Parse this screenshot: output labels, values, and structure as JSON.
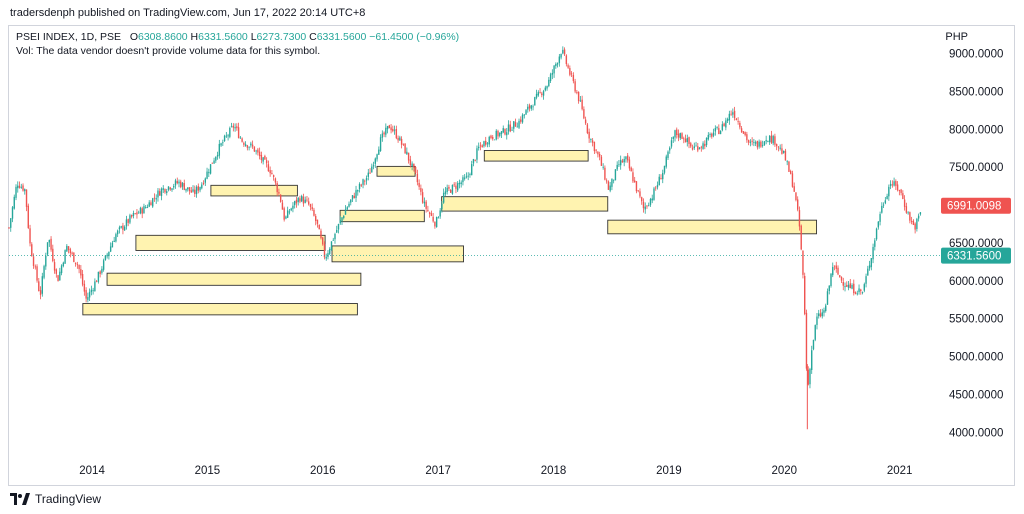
{
  "header": {
    "published": "tradersdenph published on TradingView.com, Jun 17, 2022 20:14 UTC+8"
  },
  "legend": {
    "symbol": "PSEI INDEX, 1D, PSE",
    "open_label": "O",
    "open": "6308.8600",
    "high_label": "H",
    "high": "6331.5600",
    "low_label": "L",
    "low": "6273.7300",
    "close_label": "C",
    "close": "6331.5600",
    "change": "−61.4500 (−0.96%)",
    "vol_note": "Vol: The data vendor doesn't provide volume data for this symbol."
  },
  "currency": "PHP",
  "footer": {
    "brand": "TradingView"
  },
  "colors": {
    "up": "#26a69a",
    "down": "#ef5350",
    "box_fill": "#fff3b0",
    "box_stroke": "#333333",
    "badge_red": "#ef5350",
    "badge_teal": "#26a69a"
  },
  "chart_data": {
    "type": "candlestick",
    "ylim": [
      3700,
      9350
    ],
    "y_ticks": [
      {
        "value": 9000,
        "label": "9000.0000"
      },
      {
        "value": 8500,
        "label": "8500.0000"
      },
      {
        "value": 8000,
        "label": "8000.0000"
      },
      {
        "value": 7500,
        "label": "7500.0000"
      },
      {
        "value": 7000,
        "label": "7000.0000"
      },
      {
        "value": 6500,
        "label": "6500.0000"
      },
      {
        "value": 6000,
        "label": "6000.0000"
      },
      {
        "value": 5500,
        "label": "5500.0000"
      },
      {
        "value": 5000,
        "label": "5000.0000"
      },
      {
        "value": 4500,
        "label": "4500.0000"
      },
      {
        "value": 4000,
        "label": "4000.0000"
      }
    ],
    "x_ticks": [
      {
        "value": 2014.0,
        "label": "2014"
      },
      {
        "value": 2015.0,
        "label": "2015"
      },
      {
        "value": 2016.0,
        "label": "2016"
      },
      {
        "value": 2017.0,
        "label": "2017"
      },
      {
        "value": 2018.0,
        "label": "2018"
      },
      {
        "value": 2019.0,
        "label": "2019"
      },
      {
        "value": 2020.0,
        "label": "2020"
      },
      {
        "value": 2021.0,
        "label": "2021"
      }
    ],
    "xlim": [
      2013.28,
      2021.35
    ],
    "price_path": [
      [
        2013.28,
        6700
      ],
      [
        2013.35,
        7300
      ],
      [
        2013.42,
        7200
      ],
      [
        2013.46,
        6500
      ],
      [
        2013.55,
        5800
      ],
      [
        2013.62,
        6600
      ],
      [
        2013.7,
        6000
      ],
      [
        2013.78,
        6450
      ],
      [
        2013.88,
        6200
      ],
      [
        2013.95,
        5750
      ],
      [
        2014.05,
        6050
      ],
      [
        2014.2,
        6600
      ],
      [
        2014.35,
        6850
      ],
      [
        2014.45,
        6950
      ],
      [
        2014.6,
        7200
      ],
      [
        2014.75,
        7300
      ],
      [
        2014.88,
        7150
      ],
      [
        2014.95,
        7280
      ],
      [
        2015.1,
        7750
      ],
      [
        2015.23,
        8050
      ],
      [
        2015.3,
        7850
      ],
      [
        2015.4,
        7750
      ],
      [
        2015.47,
        7600
      ],
      [
        2015.55,
        7450
      ],
      [
        2015.63,
        7100
      ],
      [
        2015.67,
        6800
      ],
      [
        2015.72,
        6950
      ],
      [
        2015.8,
        7100
      ],
      [
        2015.88,
        7000
      ],
      [
        2015.95,
        6750
      ],
      [
        2016.02,
        6300
      ],
      [
        2016.1,
        6600
      ],
      [
        2016.2,
        6950
      ],
      [
        2016.3,
        7200
      ],
      [
        2016.4,
        7400
      ],
      [
        2016.5,
        7850
      ],
      [
        2016.58,
        8050
      ],
      [
        2016.65,
        7900
      ],
      [
        2016.72,
        7700
      ],
      [
        2016.8,
        7400
      ],
      [
        2016.88,
        7000
      ],
      [
        2016.98,
        6750
      ],
      [
        2017.05,
        7150
      ],
      [
        2017.15,
        7250
      ],
      [
        2017.25,
        7350
      ],
      [
        2017.35,
        7750
      ],
      [
        2017.45,
        7900
      ],
      [
        2017.55,
        7950
      ],
      [
        2017.7,
        8100
      ],
      [
        2017.82,
        8350
      ],
      [
        2017.95,
        8600
      ],
      [
        2018.07,
        9050
      ],
      [
        2018.15,
        8700
      ],
      [
        2018.22,
        8400
      ],
      [
        2018.3,
        7950
      ],
      [
        2018.4,
        7600
      ],
      [
        2018.48,
        7200
      ],
      [
        2018.57,
        7550
      ],
      [
        2018.63,
        7600
      ],
      [
        2018.7,
        7300
      ],
      [
        2018.78,
        6950
      ],
      [
        2018.85,
        7100
      ],
      [
        2018.95,
        7450
      ],
      [
        2019.05,
        7950
      ],
      [
        2019.13,
        7900
      ],
      [
        2019.2,
        7750
      ],
      [
        2019.3,
        7800
      ],
      [
        2019.38,
        7950
      ],
      [
        2019.45,
        8000
      ],
      [
        2019.55,
        8250
      ],
      [
        2019.62,
        8050
      ],
      [
        2019.7,
        7800
      ],
      [
        2019.78,
        7800
      ],
      [
        2019.85,
        7900
      ],
      [
        2019.92,
        7850
      ],
      [
        2020.0,
        7650
      ],
      [
        2020.08,
        7250
      ],
      [
        2020.13,
        6750
      ],
      [
        2020.17,
        5900
      ],
      [
        2020.2,
        4500
      ],
      [
        2020.23,
        5000
      ],
      [
        2020.28,
        5500
      ],
      [
        2020.35,
        5600
      ],
      [
        2020.42,
        6200
      ],
      [
        2020.5,
        6000
      ],
      [
        2020.58,
        5900
      ],
      [
        2020.68,
        5850
      ],
      [
        2020.75,
        6300
      ],
      [
        2020.83,
        6900
      ],
      [
        2020.92,
        7300
      ],
      [
        2021.0,
        7200
      ],
      [
        2021.08,
        6850
      ],
      [
        2021.13,
        6700
      ],
      [
        2021.18,
        6900
      ]
    ],
    "zones": [
      {
        "from": 2013.92,
        "to": 2016.3,
        "low": 5550,
        "high": 5700
      },
      {
        "from": 2014.13,
        "to": 2016.33,
        "low": 5940,
        "high": 6100
      },
      {
        "from": 2014.38,
        "to": 2016.02,
        "low": 6400,
        "high": 6600
      },
      {
        "from": 2015.03,
        "to": 2015.78,
        "low": 7120,
        "high": 7260
      },
      {
        "from": 2016.08,
        "to": 2017.22,
        "low": 6250,
        "high": 6460
      },
      {
        "from": 2016.15,
        "to": 2016.88,
        "low": 6780,
        "high": 6930
      },
      {
        "from": 2016.47,
        "to": 2016.8,
        "low": 7380,
        "high": 7510
      },
      {
        "from": 2017.03,
        "to": 2018.47,
        "low": 6920,
        "high": 7110
      },
      {
        "from": 2017.4,
        "to": 2018.3,
        "low": 7580,
        "high": 7720
      },
      {
        "from": 2018.47,
        "to": 2020.28,
        "low": 6620,
        "high": 6800
      }
    ],
    "last_price": {
      "value": 6991.0098,
      "label": "6991.0098"
    },
    "current_price": {
      "value": 6331.56,
      "label": "6331.5600"
    }
  }
}
